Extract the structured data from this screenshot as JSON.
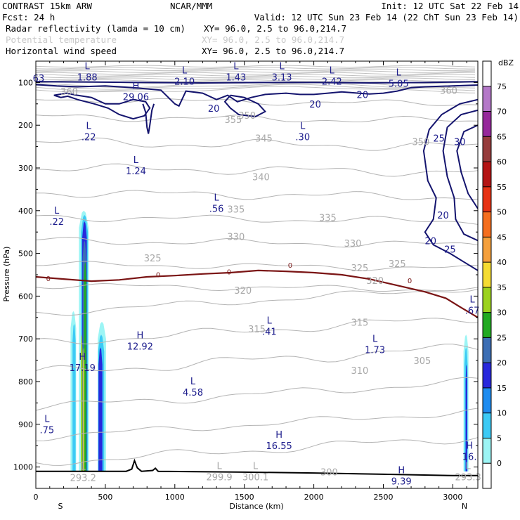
{
  "header": {
    "left_title": "CONTRAST 15km ARW",
    "center_title": "NCAR/MMM",
    "init": "Init: 12 UTC Sat 22 Feb 14",
    "fcst": "Fcst:   24 h",
    "valid": "Valid: 12 UTC Sun 23 Feb 14 (22 ChT Sun 23 Feb 14)",
    "fields": [
      {
        "label": "Radar reflectivity (lamda = 10 cm)",
        "xy": "XY=  96.0,  2.5 to  96.0,214.7",
        "color": "#000000"
      },
      {
        "label": "Potential temperature",
        "xy": "XY=  96.0,  2.5 to  96.0,214.7",
        "color": "#c8c8c8"
      },
      {
        "label": "Horizontal wind speed",
        "xy": "XY=  96.0,  2.5 to  96.0,214.7",
        "color": "#000000"
      }
    ]
  },
  "chart_data": {
    "type": "cross-section",
    "xlabel": "Distance (km)",
    "ylabel": "Pressure (hPa)",
    "xlim": [
      0,
      3180
    ],
    "ylim": [
      1050,
      50
    ],
    "x_ticks": [
      0,
      500,
      1000,
      1500,
      2000,
      2500,
      3000
    ],
    "y_ticks": [
      100,
      200,
      300,
      400,
      500,
      600,
      700,
      800,
      900,
      1000
    ],
    "x_end_labels": {
      "left": "S",
      "right": "N"
    },
    "colorbar": {
      "unit": "dBZ",
      "levels": [
        0,
        5,
        10,
        15,
        20,
        25,
        30,
        35,
        40,
        45,
        50,
        55,
        60,
        65,
        70,
        75
      ],
      "colors": [
        "#ffffff",
        "#9cf5f5",
        "#3ccaf5",
        "#1e8cf0",
        "#2828dc",
        "#3c6eb4",
        "#22aa22",
        "#9cd21e",
        "#f5dc32",
        "#f5a03c",
        "#f56e1e",
        "#e63214",
        "#b41414",
        "#963c3c",
        "#96289b",
        "#b478c8",
        "#ffffff"
      ]
    },
    "wind_contour_labels": [
      {
        "x": 2350,
        "p": 128,
        "v": "20"
      },
      {
        "x": 1280,
        "p": 160,
        "v": "20"
      },
      {
        "x": 2010,
        "p": 150,
        "v": "20"
      },
      {
        "x": 2930,
        "p": 410,
        "v": "20"
      },
      {
        "x": 2840,
        "p": 470,
        "v": "20"
      },
      {
        "x": 2900,
        "p": 230,
        "v": "25"
      },
      {
        "x": 2980,
        "p": 490,
        "v": "25"
      },
      {
        "x": 3050,
        "p": 238,
        "v": "30"
      }
    ],
    "theta_contour_labels": [
      {
        "x": 1520,
        "p": 178,
        "v": "350"
      },
      {
        "x": 2970,
        "p": 120,
        "v": "360"
      },
      {
        "x": 1640,
        "p": 232,
        "v": "345"
      },
      {
        "x": 2770,
        "p": 240,
        "v": "350"
      },
      {
        "x": 1620,
        "p": 322,
        "v": "340"
      },
      {
        "x": 1440,
        "p": 398,
        "v": "335"
      },
      {
        "x": 2100,
        "p": 418,
        "v": "335"
      },
      {
        "x": 1440,
        "p": 462,
        "v": "330"
      },
      {
        "x": 2280,
        "p": 478,
        "v": "330"
      },
      {
        "x": 840,
        "p": 512,
        "v": "325"
      },
      {
        "x": 2330,
        "p": 535,
        "v": "325"
      },
      {
        "x": 2600,
        "p": 525,
        "v": "325"
      },
      {
        "x": 1490,
        "p": 588,
        "v": "320"
      },
      {
        "x": 2440,
        "p": 565,
        "v": "320"
      },
      {
        "x": 1590,
        "p": 678,
        "v": "315"
      },
      {
        "x": 2330,
        "p": 663,
        "v": "315"
      },
      {
        "x": 2330,
        "p": 775,
        "v": "310"
      },
      {
        "x": 2780,
        "p": 752,
        "v": "305"
      },
      {
        "x": 240,
        "p": 122,
        "v": "360"
      },
      {
        "x": 1420,
        "p": 188,
        "v": "355"
      },
      {
        "x": 2110,
        "p": 1013,
        "v": "300"
      }
    ],
    "freezing_level_labels": [
      {
        "x": 90,
        "p": 558,
        "v": "0"
      },
      {
        "x": 880,
        "p": 549,
        "v": "0"
      },
      {
        "x": 1390,
        "p": 543,
        "v": "0"
      },
      {
        "x": 1830,
        "p": 527,
        "v": "0"
      },
      {
        "x": 2690,
        "p": 563,
        "v": "0"
      }
    ],
    "extrema": [
      {
        "x": 20,
        "p": 75,
        "t": "",
        "v": "63"
      },
      {
        "x": 370,
        "p": 72,
        "t": "L",
        "v": "1.88"
      },
      {
        "x": 1070,
        "p": 82,
        "t": "L",
        "v": "2.10"
      },
      {
        "x": 1440,
        "p": 72,
        "t": "L",
        "v": "1.43"
      },
      {
        "x": 1770,
        "p": 72,
        "t": "L",
        "v": "3.13"
      },
      {
        "x": 2130,
        "p": 82,
        "t": "L",
        "v": "2.42"
      },
      {
        "x": 2610,
        "p": 87,
        "t": "L",
        "v": "5.05"
      },
      {
        "x": 720,
        "p": 118,
        "t": "H",
        "v": "29.06"
      },
      {
        "x": 380,
        "p": 212,
        "t": "L",
        "v": ".22"
      },
      {
        "x": 1920,
        "p": 212,
        "t": "L",
        "v": ".30"
      },
      {
        "x": 720,
        "p": 292,
        "t": "L",
        "v": "1.24"
      },
      {
        "x": 1300,
        "p": 380,
        "t": "L",
        "v": ".56"
      },
      {
        "x": 150,
        "p": 410,
        "t": "L",
        "v": ".22"
      },
      {
        "x": 1680,
        "p": 668,
        "t": "L",
        "v": ".41"
      },
      {
        "x": 3140,
        "p": 618,
        "t": "L",
        "v": ".67"
      },
      {
        "x": 750,
        "p": 702,
        "t": "H",
        "v": "12.92"
      },
      {
        "x": 2440,
        "p": 710,
        "t": "L",
        "v": "1.73"
      },
      {
        "x": 335,
        "p": 752,
        "t": "H",
        "v": "17.19"
      },
      {
        "x": 1130,
        "p": 810,
        "t": "L",
        "v": "4.58"
      },
      {
        "x": 80,
        "p": 898,
        "t": "L",
        "v": ".75"
      },
      {
        "x": 1750,
        "p": 935,
        "t": "H",
        "v": "16.55"
      },
      {
        "x": 3120,
        "p": 960,
        "t": "H",
        "v": "16."
      },
      {
        "x": 340,
        "p": 1010,
        "t": "L",
        "v": "293.2"
      },
      {
        "x": 1320,
        "p": 1008,
        "t": "L",
        "v": "299.9"
      },
      {
        "x": 1580,
        "p": 1008,
        "t": "L",
        "v": "300.1"
      },
      {
        "x": 2630,
        "p": 1018,
        "t": "H",
        "v": "9.39"
      },
      {
        "x": 3110,
        "p": 1008,
        "t": "L",
        "v": "293.3"
      }
    ],
    "terrain": [
      [
        0,
        1010
      ],
      [
        300,
        1010
      ],
      [
        650,
        1010
      ],
      [
        690,
        1005
      ],
      [
        710,
        985
      ],
      [
        730,
        1002
      ],
      [
        760,
        1010
      ],
      [
        840,
        1008
      ],
      [
        860,
        1003
      ],
      [
        880,
        1010
      ],
      [
        1500,
        1012
      ],
      [
        2000,
        1014
      ],
      [
        2500,
        1017
      ],
      [
        3000,
        1020
      ],
      [
        3180,
        1020
      ]
    ]
  }
}
